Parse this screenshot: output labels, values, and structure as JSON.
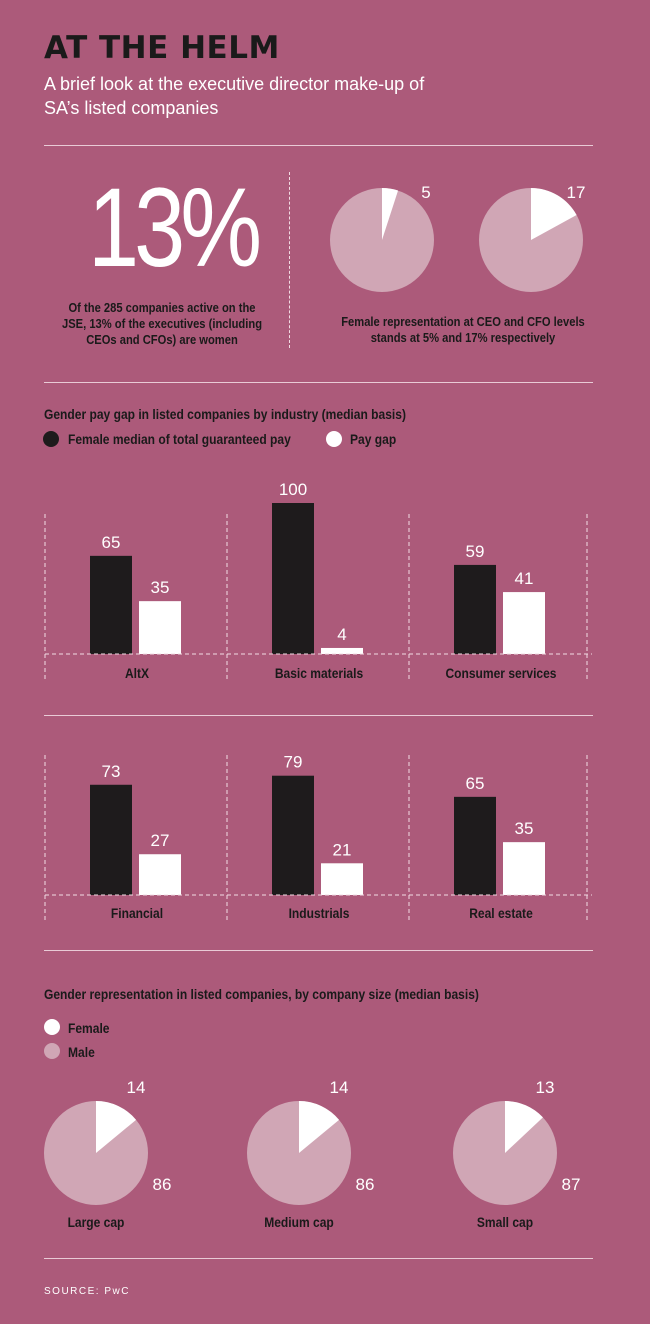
{
  "header": {
    "title": "AT THE HELM",
    "subtitle": "A brief look at the executive director make-up of SA’s listed companies"
  },
  "stat": {
    "value": "13%",
    "caption": "Of the 285 companies active on the JSE, 13% of the executives (including CEOs and CFOs) are women"
  },
  "ceo_cfo": {
    "caption": "Female representation at CEO and CFO levels stands at 5% and 17% respectively",
    "ceo_label": "5",
    "cfo_label": "17"
  },
  "pay_gap": {
    "title": "Gender pay gap in listed companies by industry (median basis)",
    "legend_female": "Female median of total guaranteed pay",
    "legend_gap": "Pay gap"
  },
  "size": {
    "title": "Gender representation in listed companies, by company size (median basis)",
    "legend_female": "Female",
    "legend_male": "Male"
  },
  "source": "SOURCE: PwC",
  "colors": {
    "background": "#ac5a7a",
    "female_bar": "#1e1b1c",
    "gap_bar": "#ffffff",
    "pie_male": "#d0a6b5",
    "pie_female": "#ffffff"
  },
  "chart_data": [
    {
      "type": "pie",
      "slices": [
        {
          "label": "5",
          "value": 5
        },
        {
          "value": 95
        }
      ]
    },
    {
      "type": "pie",
      "slices": [
        {
          "label": "17",
          "value": 17
        },
        {
          "value": 83
        }
      ]
    },
    {
      "type": "bar",
      "categories": [
        "AltX",
        "Basic materials",
        "Consumer services"
      ],
      "series": [
        {
          "name": "Female median of total guaranteed pay",
          "values": [
            65,
            100,
            59
          ]
        },
        {
          "name": "Pay gap",
          "values": [
            35,
            4,
            41
          ]
        }
      ],
      "ylim": [
        0,
        100
      ]
    },
    {
      "type": "bar",
      "categories": [
        "Financial",
        "Industrials",
        "Real estate"
      ],
      "series": [
        {
          "name": "Female median of total guaranteed pay",
          "values": [
            73,
            79,
            65
          ]
        },
        {
          "name": "Pay gap",
          "values": [
            27,
            21,
            35
          ]
        }
      ],
      "ylim": [
        0,
        100
      ]
    },
    {
      "type": "pie",
      "categories": [
        "Large cap",
        "Medium cap",
        "Small cap"
      ],
      "series": [
        {
          "name": "Female",
          "values": [
            14,
            14,
            13
          ]
        },
        {
          "name": "Male",
          "values": [
            86,
            86,
            87
          ]
        }
      ],
      "labels_female": [
        "14",
        "14",
        "13"
      ],
      "labels_male": [
        "86",
        "86",
        "87"
      ]
    }
  ]
}
